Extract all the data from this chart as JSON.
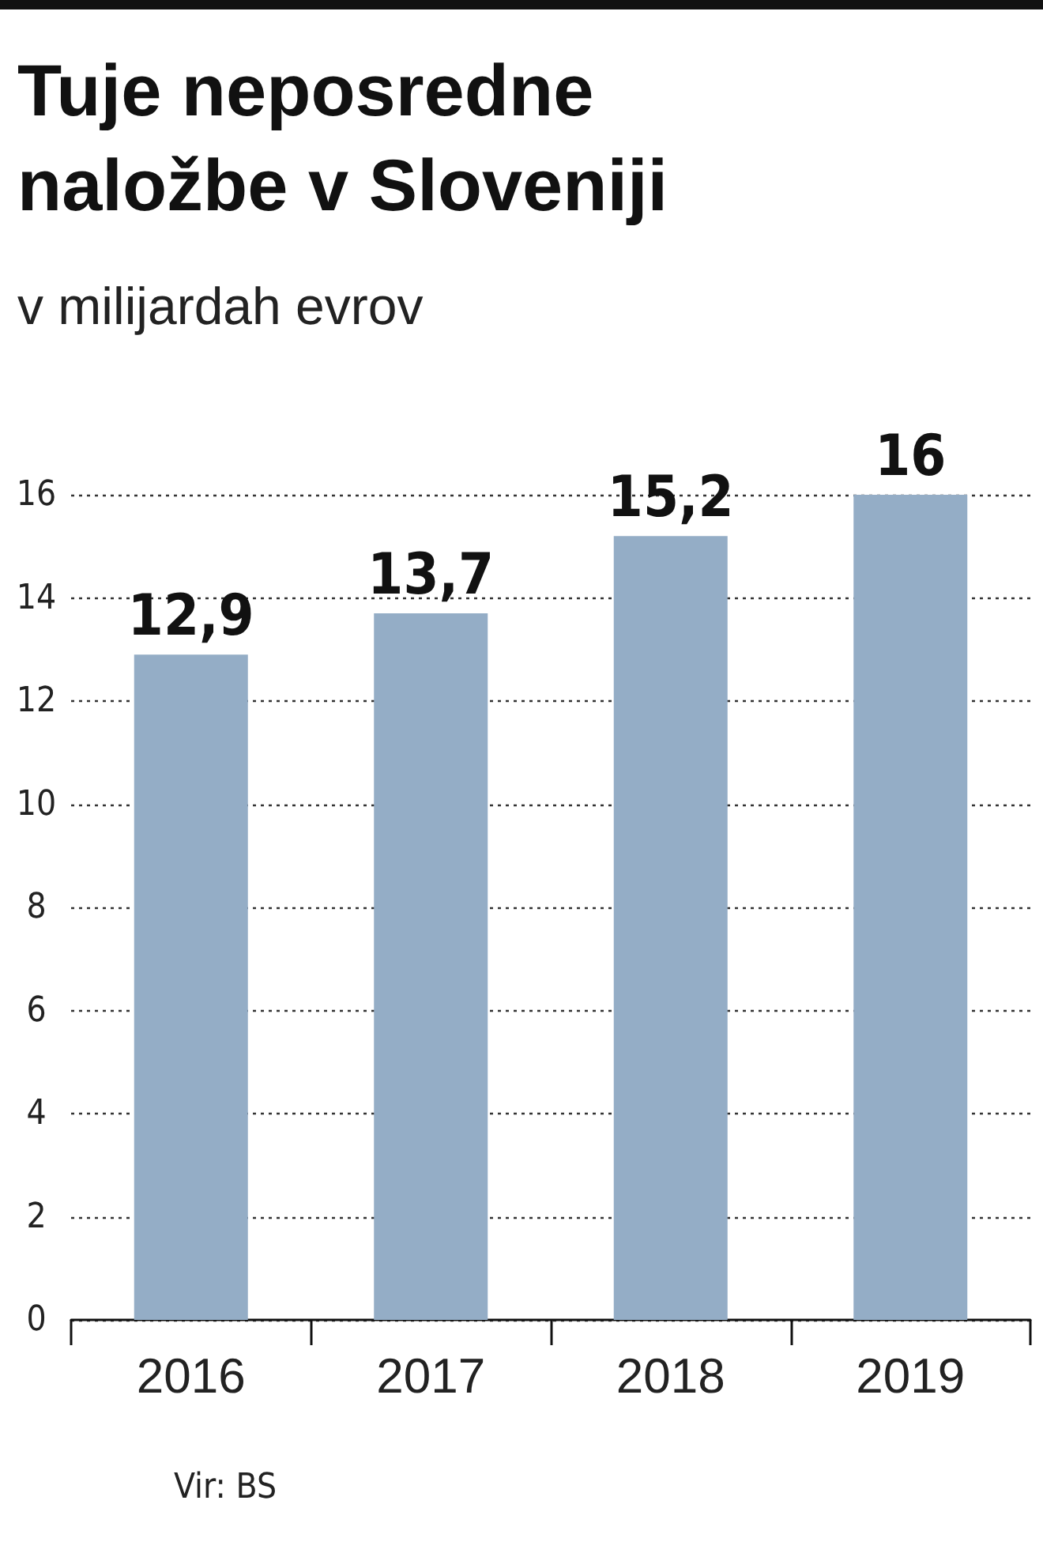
{
  "chart_data": {
    "type": "bar",
    "title": "Tuje neposredne naložbe v Sloveniji",
    "subtitle": "v milijardah evrov",
    "categories": [
      "2016",
      "2017",
      "2018",
      "2019"
    ],
    "values": [
      12.9,
      13.7,
      15.2,
      16
    ],
    "value_labels": [
      "12,9",
      "13,7",
      "15,2",
      "16"
    ],
    "color": "#94adc6",
    "ylim": [
      0,
      16
    ],
    "yticks": [
      0,
      2,
      4,
      6,
      8,
      10,
      12,
      14,
      16
    ],
    "grid": "y",
    "annotations": [
      "Vir: BS"
    ]
  }
}
